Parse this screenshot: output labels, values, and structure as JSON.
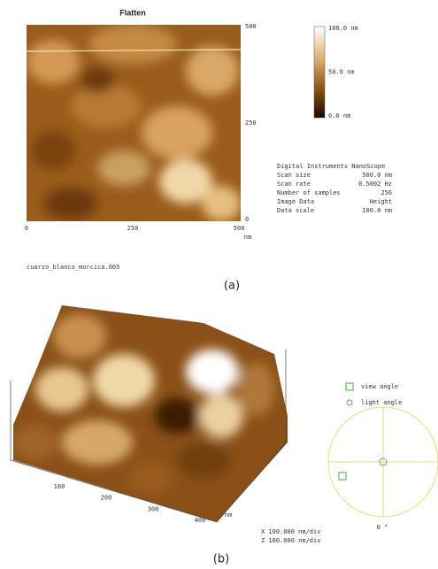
{
  "panel_a": {
    "title": "Flatten",
    "x_ticks": [
      "0",
      "250",
      "500"
    ],
    "x_unit": "nm",
    "y_ticks": [
      "500",
      "250",
      "0"
    ],
    "colorbar_labels": [
      "100.0 nm",
      "50.0 nm",
      "0.0 nm"
    ],
    "info": [
      [
        "Digital Instruments NanoScope",
        ""
      ],
      [
        "Scan size",
        "500.0 nm"
      ],
      [
        "Scan rate",
        "0.5002 Hz"
      ],
      [
        "Number of samples",
        "256"
      ],
      [
        "Image Data",
        "Height"
      ],
      [
        "Data scale",
        "100.0 nm"
      ]
    ],
    "filename": "cuarzo_blanco_morcica.005",
    "caption": "(a)"
  },
  "panel_b": {
    "x_ticks": [
      "100",
      "200",
      "300",
      "400"
    ],
    "x_unit": "nm",
    "legend": [
      "view angle",
      "light angle"
    ],
    "angle": "0 °",
    "scale": [
      "X  100.000 nm/div",
      "Z  100.000 nm/div"
    ],
    "caption": "(b)"
  }
}
